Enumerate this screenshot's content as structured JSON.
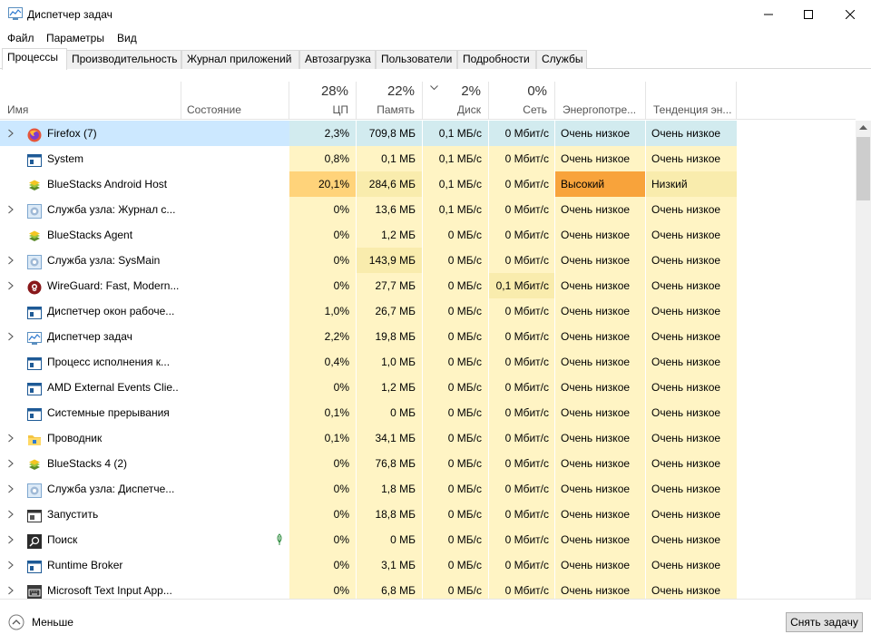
{
  "window": {
    "title": "Диспетчер задач"
  },
  "menu": [
    "Файл",
    "Параметры",
    "Вид"
  ],
  "tabs": [
    "Процессы",
    "Производительность",
    "Журнал приложений",
    "Автозагрузка",
    "Пользователи",
    "Подробности",
    "Службы"
  ],
  "active_tab": "Процессы",
  "columns": {
    "name": "Имя",
    "state": "Состояние",
    "cpu": {
      "pct": "28%",
      "label": "ЦП"
    },
    "mem": {
      "pct": "22%",
      "label": "Память"
    },
    "disk": {
      "pct": "2%",
      "label": "Диск"
    },
    "net": {
      "pct": "0%",
      "label": "Сеть"
    },
    "power": "Энергопотре...",
    "trend": "Тенденция эн..."
  },
  "processes": [
    {
      "name": "Firefox (7)",
      "icon": "firefox-icon",
      "expand": true,
      "cpu": "2,3%",
      "mem": "709,8 МБ",
      "disk": "0,1 МБ/с",
      "net": "0 Мбит/с",
      "power": "Очень низкое",
      "trend": "Очень низкое"
    },
    {
      "name": "System",
      "icon": "window-icon",
      "expand": false,
      "cpu": "0,8%",
      "mem": "0,1 МБ",
      "disk": "0,1 МБ/с",
      "net": "0 Мбит/с",
      "power": "Очень низкое",
      "trend": "Очень низкое"
    },
    {
      "name": "BlueStacks Android Host",
      "icon": "bluestacks-icon",
      "expand": false,
      "cpu": "20,1%",
      "mem": "284,6 МБ",
      "disk": "0,1 МБ/с",
      "net": "0 Мбит/с",
      "power": "Высокий",
      "trend": "Низкий"
    },
    {
      "name": "Служба узла: Журнал с...",
      "icon": "gear-icon",
      "expand": true,
      "cpu": "0%",
      "mem": "13,6 МБ",
      "disk": "0,1 МБ/с",
      "net": "0 Мбит/с",
      "power": "Очень низкое",
      "trend": "Очень низкое"
    },
    {
      "name": "BlueStacks Agent",
      "icon": "bluestacks-icon",
      "expand": false,
      "cpu": "0%",
      "mem": "1,2 МБ",
      "disk": "0 МБ/с",
      "net": "0 Мбит/с",
      "power": "Очень низкое",
      "trend": "Очень низкое"
    },
    {
      "name": "Служба узла: SysMain",
      "icon": "gear-icon",
      "expand": true,
      "cpu": "0%",
      "mem": "143,9 МБ",
      "disk": "0 МБ/с",
      "net": "0 Мбит/с",
      "power": "Очень низкое",
      "trend": "Очень низкое"
    },
    {
      "name": "WireGuard: Fast, Modern...",
      "icon": "wireguard-icon",
      "expand": true,
      "cpu": "0%",
      "mem": "27,7 МБ",
      "disk": "0 МБ/с",
      "net": "0,1 Мбит/с",
      "power": "Очень низкое",
      "trend": "Очень низкое"
    },
    {
      "name": "Диспетчер окон рабоче...",
      "icon": "window-icon",
      "expand": false,
      "cpu": "1,0%",
      "mem": "26,7 МБ",
      "disk": "0 МБ/с",
      "net": "0 Мбит/с",
      "power": "Очень низкое",
      "trend": "Очень низкое"
    },
    {
      "name": "Диспетчер задач",
      "icon": "taskmgr-icon",
      "expand": true,
      "cpu": "2,2%",
      "mem": "19,8 МБ",
      "disk": "0 МБ/с",
      "net": "0 Мбит/с",
      "power": "Очень низкое",
      "trend": "Очень низкое"
    },
    {
      "name": "Процесс исполнения к...",
      "icon": "window-icon",
      "expand": false,
      "cpu": "0,4%",
      "mem": "1,0 МБ",
      "disk": "0 МБ/с",
      "net": "0 Мбит/с",
      "power": "Очень низкое",
      "trend": "Очень низкое"
    },
    {
      "name": "AMD External Events Clie...",
      "icon": "window-icon",
      "expand": false,
      "cpu": "0%",
      "mem": "1,2 МБ",
      "disk": "0 МБ/с",
      "net": "0 Мбит/с",
      "power": "Очень низкое",
      "trend": "Очень низкое"
    },
    {
      "name": "Системные прерывания",
      "icon": "window-icon",
      "expand": false,
      "cpu": "0,1%",
      "mem": "0 МБ",
      "disk": "0 МБ/с",
      "net": "0 Мбит/с",
      "power": "Очень низкое",
      "trend": "Очень низкое"
    },
    {
      "name": "Проводник",
      "icon": "folder-icon",
      "expand": true,
      "cpu": "0,1%",
      "mem": "34,1 МБ",
      "disk": "0 МБ/с",
      "net": "0 Мбит/с",
      "power": "Очень низкое",
      "trend": "Очень низкое"
    },
    {
      "name": "BlueStacks 4 (2)",
      "icon": "bluestacks-icon",
      "expand": true,
      "cpu": "0%",
      "mem": "76,8 МБ",
      "disk": "0 МБ/с",
      "net": "0 Мбит/с",
      "power": "Очень низкое",
      "trend": "Очень низкое"
    },
    {
      "name": "Служба узла: Диспетче...",
      "icon": "gear-icon",
      "expand": true,
      "cpu": "0%",
      "mem": "1,8 МБ",
      "disk": "0 МБ/с",
      "net": "0 Мбит/с",
      "power": "Очень низкое",
      "trend": "Очень низкое"
    },
    {
      "name": "Запустить",
      "icon": "run-icon",
      "expand": true,
      "cpu": "0%",
      "mem": "18,8 МБ",
      "disk": "0 МБ/с",
      "net": "0 Мбит/с",
      "power": "Очень низкое",
      "trend": "Очень низкое"
    },
    {
      "name": "Поиск",
      "icon": "search-icon",
      "expand": true,
      "suspended": true,
      "cpu": "0%",
      "mem": "0 МБ",
      "disk": "0 МБ/с",
      "net": "0 Мбит/с",
      "power": "Очень низкое",
      "trend": "Очень низкое"
    },
    {
      "name": "Runtime Broker",
      "icon": "window-icon",
      "expand": true,
      "cpu": "0%",
      "mem": "3,1 МБ",
      "disk": "0 МБ/с",
      "net": "0 Мбит/с",
      "power": "Очень низкое",
      "trend": "Очень низкое"
    },
    {
      "name": "Microsoft Text Input App...",
      "icon": "keyboard-icon",
      "expand": true,
      "cpu": "0%",
      "mem": "6,8 МБ",
      "disk": "0 МБ/с",
      "net": "0 Мбит/с",
      "power": "Очень низкое",
      "trend": "Очень низкое"
    }
  ],
  "footer": {
    "less_label": "Меньше",
    "end_task_label": "Снять задачу"
  }
}
